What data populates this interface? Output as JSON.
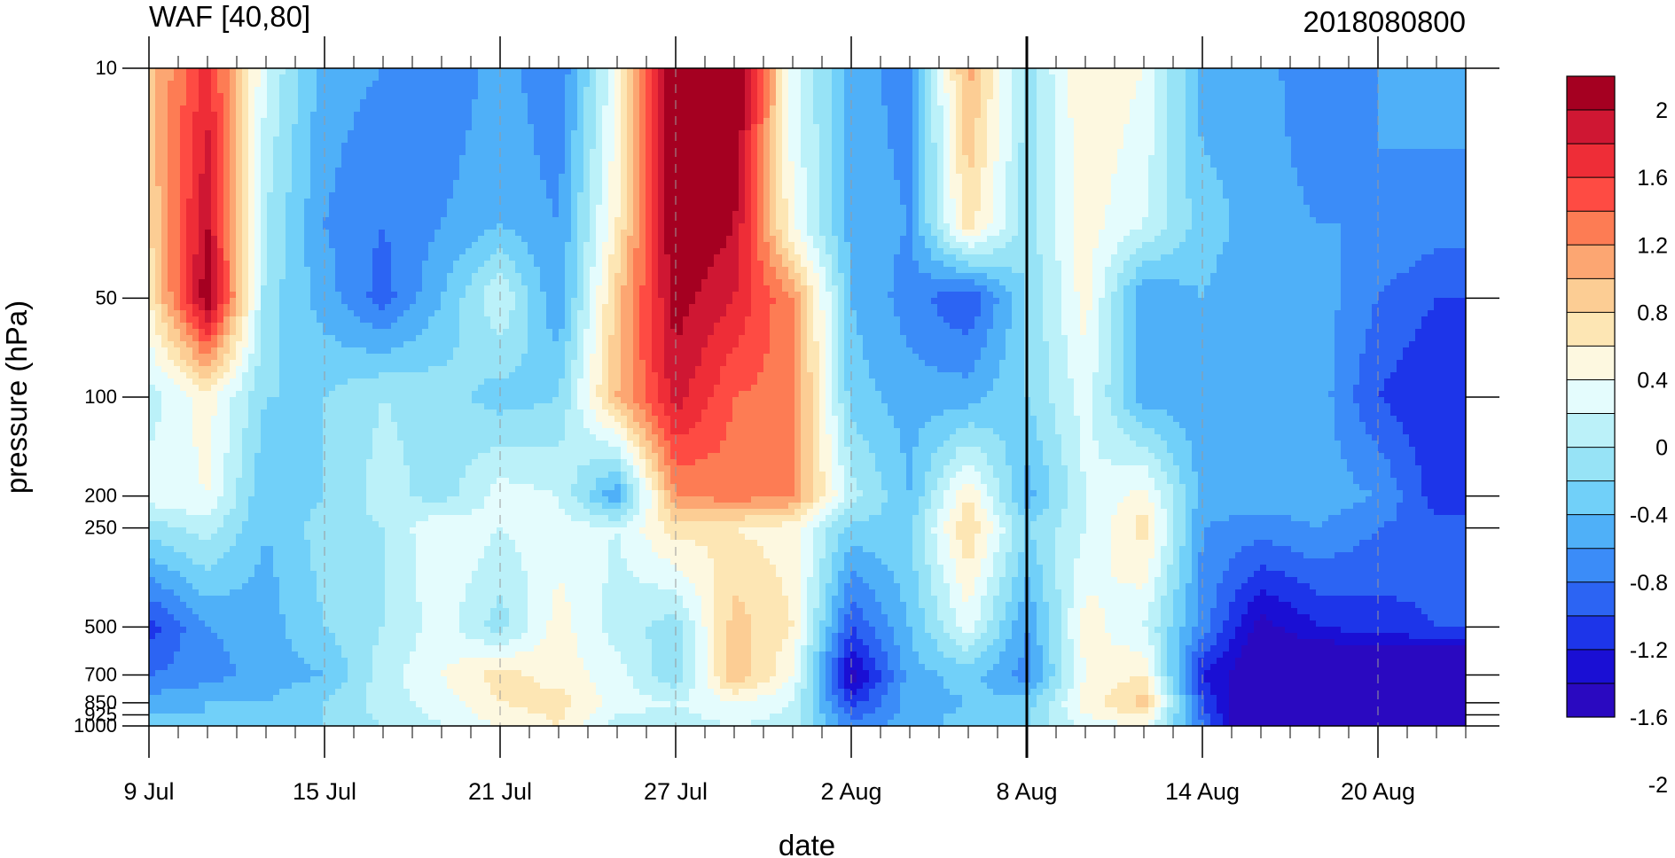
{
  "chart_data": {
    "type": "heatmap",
    "title_left": "WAF [40,80]",
    "title_right": "2018080800",
    "xlabel": "date",
    "ylabel": "pressure (hPa)",
    "x_range": [
      "9 Jul",
      "23 Aug"
    ],
    "x_ticks": [
      "9 Jul",
      "15 Jul",
      "21 Jul",
      "27 Jul",
      "2 Aug",
      "8 Aug",
      "14 Aug",
      "20 Aug"
    ],
    "y_scale": "log",
    "y_range": [
      1000,
      10
    ],
    "y_ticks": [
      10,
      50,
      100,
      200,
      250,
      500,
      700,
      850,
      925,
      1000
    ],
    "vertical_marker": "8 Aug",
    "colorbar": {
      "ticks": [
        "2",
        "1.6",
        "1.2",
        "0.8",
        "0.4",
        "0",
        "-0.4",
        "-0.8",
        "-1.2",
        "-1.6",
        "-2"
      ],
      "colors": [
        "#a50021",
        "#cf1733",
        "#ee2d37",
        "#fe4b43",
        "#fd7c54",
        "#fca672",
        "#fccd94",
        "#fde6b4",
        "#fdf8e0",
        "#e4fcfd",
        "#bbf1f9",
        "#97e3f6",
        "#71d0f9",
        "#4fb0f8",
        "#3b8cf8",
        "#2c64f3",
        "#1d35e9",
        "#1a0fd4",
        "#2a09c0"
      ]
    },
    "columns": [
      "9 Jul",
      "11 Jul",
      "13 Jul",
      "15 Jul",
      "17 Jul",
      "19 Jul",
      "21 Jul",
      "23 Jul",
      "25 Jul",
      "27 Jul",
      "29 Jul",
      "31 Jul",
      "2 Aug",
      "4 Aug",
      "6 Aug",
      "8 Aug",
      "10 Aug",
      "12 Aug",
      "14 Aug",
      "16 Aug",
      "18 Aug",
      "20 Aug",
      "22 Aug"
    ],
    "rows_hPa": [
      10,
      30,
      50,
      100,
      200,
      250,
      500,
      700,
      850,
      1000
    ],
    "values": [
      [
        0.9,
        1.7,
        0.2,
        -0.5,
        -0.6,
        -0.8,
        -0.5,
        -0.8,
        0.4,
        2.4,
        2.4,
        0.3,
        -0.5,
        -0.7,
        1.1,
        -0.1,
        0.6,
        0.4,
        -0.5,
        -0.5,
        -0.8,
        -0.6,
        -0.5
      ],
      [
        0.8,
        2.0,
        0.0,
        -0.6,
        -0.8,
        -0.6,
        -0.4,
        -0.6,
        0.6,
        2.3,
        2.0,
        0.4,
        -0.5,
        -0.6,
        0.7,
        -0.1,
        0.5,
        0.2,
        -0.3,
        -0.5,
        -0.6,
        -0.6,
        -0.7
      ],
      [
        0.6,
        2.2,
        -0.1,
        -0.5,
        -0.9,
        -0.4,
        0.2,
        -0.6,
        0.9,
        2.1,
        1.8,
        1.2,
        -0.4,
        -0.7,
        -1.0,
        -0.2,
        0.5,
        -0.6,
        -0.4,
        -0.6,
        -0.5,
        -0.8,
        -1.0
      ],
      [
        0.1,
        0.5,
        -0.2,
        -0.2,
        0.0,
        -0.1,
        -0.3,
        -0.2,
        1.0,
        1.9,
        1.4,
        1.3,
        -0.3,
        -0.5,
        -0.5,
        -0.2,
        0.3,
        -0.5,
        -0.5,
        -0.5,
        -0.5,
        -1.0,
        -1.2
      ],
      [
        0.3,
        0.4,
        -0.4,
        -0.2,
        0.1,
        -0.1,
        0.3,
        0.2,
        -0.6,
        1.2,
        1.3,
        1.2,
        0.1,
        -0.4,
        0.6,
        -0.5,
        0.2,
        0.5,
        -0.5,
        -0.5,
        -0.5,
        -0.6,
        -1.1
      ],
      [
        -0.1,
        0.1,
        -0.4,
        -0.1,
        0.0,
        0.4,
        0.2,
        0.3,
        0.2,
        0.7,
        0.6,
        0.5,
        -0.3,
        -0.2,
        0.8,
        -0.2,
        0.2,
        0.7,
        -0.6,
        -0.7,
        -0.6,
        -0.8,
        -0.9
      ],
      [
        -1.1,
        -0.6,
        -0.5,
        -0.2,
        0.0,
        0.3,
        -0.1,
        0.5,
        0.1,
        -0.1,
        0.9,
        0.6,
        -1.0,
        -0.4,
        0.3,
        -0.6,
        0.5,
        0.2,
        -0.7,
        -1.5,
        -1.2,
        -1.1,
        -1.0
      ],
      [
        -0.8,
        -0.7,
        -0.5,
        -0.4,
        0.1,
        0.4,
        0.7,
        0.5,
        0.3,
        -0.2,
        1.0,
        0.4,
        -1.5,
        -0.5,
        -0.3,
        -0.7,
        0.4,
        0.6,
        -1.2,
        -1.7,
        -1.9,
        -1.8,
        -1.9
      ],
      [
        -0.5,
        -0.4,
        -0.4,
        -0.2,
        0.1,
        0.3,
        0.6,
        0.7,
        0.3,
        0.2,
        0.4,
        0.2,
        -1.1,
        -0.5,
        -0.4,
        -0.3,
        0.5,
        0.9,
        -1.0,
        -1.8,
        -2.2,
        -2.2,
        -2.1
      ],
      [
        -0.3,
        -0.4,
        -0.3,
        -0.2,
        0.0,
        0.2,
        0.4,
        0.6,
        0.1,
        0.1,
        0.2,
        0.1,
        -0.7,
        -0.5,
        -0.3,
        -0.2,
        0.3,
        0.4,
        -0.8,
        -2.0,
        -2.3,
        -2.3,
        -2.3
      ]
    ]
  }
}
